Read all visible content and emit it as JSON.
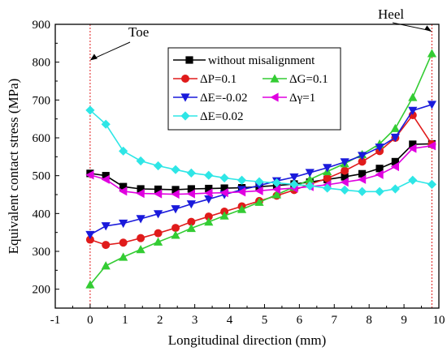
{
  "chart_data": {
    "type": "line",
    "xlabel": "Longitudinal direction (mm)",
    "ylabel": "Equivalent contact stress (MPa)",
    "xlim": [
      -1,
      10
    ],
    "ylim": [
      150,
      900
    ],
    "x_ticks": [
      -1,
      0,
      1,
      2,
      3,
      4,
      5,
      6,
      7,
      8,
      9,
      10
    ],
    "y_ticks": [
      200,
      300,
      400,
      500,
      600,
      700,
      800,
      900
    ],
    "x_tick_labels": [
      "-1",
      "0",
      "1",
      "2",
      "3",
      "4",
      "5",
      "6",
      "7",
      "8",
      "9",
      "10"
    ],
    "y_tick_labels": [
      "200",
      "300",
      "400",
      "500",
      "600",
      "700",
      "800",
      "900"
    ],
    "grid": false,
    "legend_position": "top-right",
    "reference_lines": [
      {
        "x": 0,
        "color": "#e01b1b",
        "style": "dotted"
      },
      {
        "x": 9.8,
        "color": "#e01b1b",
        "style": "dotted"
      }
    ],
    "annotations": [
      {
        "text": "Toe",
        "points_to": {
          "x": 0,
          "y": 805
        }
      },
      {
        "text": "Heel",
        "points_to": {
          "x": 9.8,
          "y": 880
        }
      }
    ],
    "series": [
      {
        "name": "without misalignment",
        "color": "#000000",
        "marker": "square",
        "x": [
          0,
          0.45,
          0.95,
          1.45,
          1.95,
          2.45,
          2.9,
          3.4,
          3.85,
          4.35,
          4.85,
          5.35,
          5.85,
          6.3,
          6.8,
          7.3,
          7.8,
          8.3,
          8.75,
          9.25,
          9.8
        ],
        "y": [
          506,
          500,
          471,
          465,
          464,
          463,
          465,
          466,
          467,
          468,
          471,
          474,
          478,
          483,
          490,
          497,
          505,
          519,
          537,
          583,
          584
        ]
      },
      {
        "name": "ΔP=0.1",
        "color": "#e01b1b",
        "marker": "circle",
        "x": [
          0,
          0.45,
          0.95,
          1.45,
          1.95,
          2.45,
          2.9,
          3.4,
          3.85,
          4.35,
          4.85,
          5.35,
          5.85,
          6.3,
          6.8,
          7.3,
          7.8,
          8.3,
          8.75,
          9.25,
          9.8
        ],
        "y": [
          331,
          317,
          323,
          335,
          348,
          362,
          378,
          392,
          405,
          419,
          433,
          447,
          462,
          477,
          493,
          513,
          537,
          565,
          600,
          660,
          583
        ]
      },
      {
        "name": "ΔG=0.1",
        "color": "#33cc33",
        "marker": "triangle-up",
        "x": [
          0,
          0.45,
          0.95,
          1.45,
          1.95,
          2.45,
          2.9,
          3.4,
          3.85,
          4.35,
          4.85,
          5.35,
          5.85,
          6.3,
          6.8,
          7.3,
          7.8,
          8.3,
          8.75,
          9.25,
          9.8
        ],
        "y": [
          212,
          262,
          285,
          305,
          325,
          343,
          361,
          378,
          394,
          411,
          430,
          450,
          470,
          490,
          511,
          532,
          556,
          584,
          625,
          707,
          823
        ]
      },
      {
        "name": "ΔE=-0.02",
        "color": "#1a1adb",
        "marker": "triangle-down",
        "x": [
          0,
          0.45,
          0.95,
          1.45,
          1.95,
          2.45,
          2.9,
          3.4,
          3.85,
          4.35,
          4.85,
          5.35,
          5.85,
          6.3,
          6.8,
          7.3,
          7.8,
          8.3,
          8.75,
          9.25,
          9.8
        ],
        "y": [
          344,
          367,
          374,
          386,
          399,
          412,
          425,
          438,
          450,
          463,
          474,
          486,
          496,
          508,
          521,
          536,
          553,
          575,
          601,
          672,
          688
        ]
      },
      {
        "name": "Δγ=1",
        "color": "#e000e0",
        "marker": "triangle-left",
        "x": [
          0,
          0.45,
          0.95,
          1.45,
          1.95,
          2.45,
          2.9,
          3.4,
          3.85,
          4.35,
          4.85,
          5.35,
          5.85,
          6.3,
          6.8,
          7.3,
          7.8,
          8.3,
          8.75,
          9.25,
          9.8
        ],
        "y": [
          502,
          490,
          459,
          453,
          452,
          451,
          452,
          454,
          455,
          457,
          460,
          464,
          467,
          471,
          476,
          483,
          490,
          503,
          524,
          572,
          579
        ]
      },
      {
        "name": "ΔE=0.02",
        "color": "#2ee6e6",
        "marker": "diamond",
        "x": [
          0,
          0.45,
          0.95,
          1.45,
          1.95,
          2.45,
          2.9,
          3.4,
          3.85,
          4.35,
          4.85,
          5.35,
          5.85,
          6.3,
          6.8,
          7.3,
          7.8,
          8.3,
          8.75,
          9.25,
          9.8
        ],
        "y": [
          673,
          636,
          565,
          539,
          526,
          516,
          507,
          501,
          494,
          488,
          484,
          481,
          477,
          473,
          467,
          462,
          458,
          458,
          465,
          488,
          477
        ]
      }
    ]
  }
}
